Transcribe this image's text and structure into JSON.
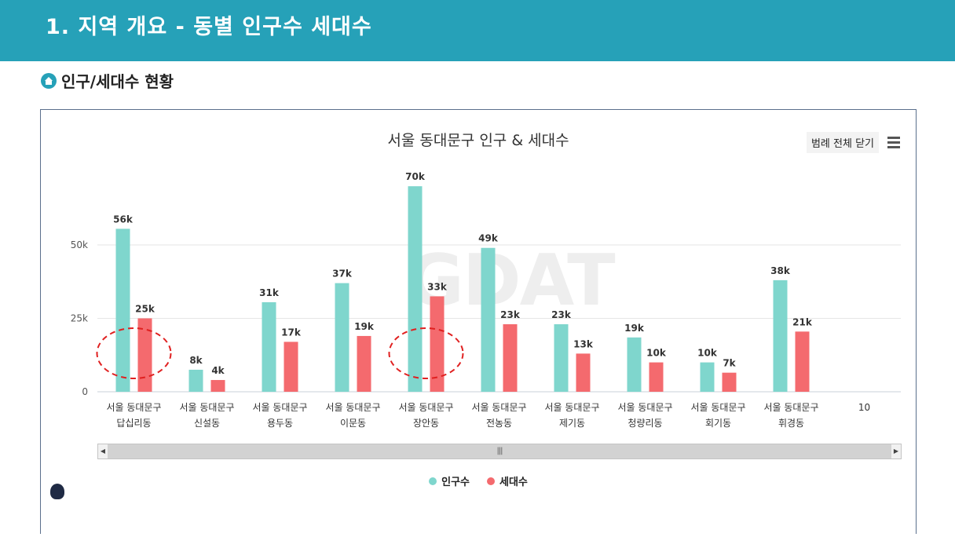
{
  "header": {
    "title": "1. 지역 개요 - 동별 인구수 세대수"
  },
  "section": {
    "title": "인구/세대수 현황"
  },
  "toolbar": {
    "legend_close_label": "범례 전체 닫기"
  },
  "colors": {
    "header": "#26a1b8",
    "population": "#7fd6cd",
    "households": "#f46a6e"
  },
  "chart_data": {
    "type": "bar",
    "title": "서울 동대문구 인구 & 세대수",
    "categories": [
      [
        "서울 동대문구",
        "답십리동"
      ],
      [
        "서울 동대문구",
        "신설동"
      ],
      [
        "서울 동대문구",
        "용두동"
      ],
      [
        "서울 동대문구",
        "이문동"
      ],
      [
        "서울 동대문구",
        "장안동"
      ],
      [
        "서울 동대문구",
        "전농동"
      ],
      [
        "서울 동대문구",
        "제기동"
      ],
      [
        "서울 동대문구",
        "청량리동"
      ],
      [
        "서울 동대문구",
        "회기동"
      ],
      [
        "서울 동대문구",
        "휘경동"
      ],
      [
        "10"
      ]
    ],
    "series": [
      {
        "name": "인구수",
        "color": "#7fd6cd",
        "values": [
          55500,
          7500,
          30500,
          37000,
          70000,
          49000,
          23000,
          18500,
          10000,
          38000,
          null
        ],
        "labels": [
          "56k",
          "8k",
          "31k",
          "37k",
          "70k",
          "49k",
          "23k",
          "19k",
          "10k",
          "38k",
          ""
        ]
      },
      {
        "name": "세대수",
        "color": "#f46a6e",
        "values": [
          25000,
          4000,
          17000,
          19000,
          32500,
          23000,
          13000,
          10000,
          6500,
          20500,
          null
        ],
        "labels": [
          "25k",
          "4k",
          "17k",
          "19k",
          "33k",
          "23k",
          "13k",
          "10k",
          "7k",
          "21k",
          ""
        ]
      }
    ],
    "yticks": [
      0,
      25000,
      50000
    ],
    "ytick_labels": [
      "0",
      "25k",
      "50k"
    ],
    "ylim": [
      0,
      75000
    ],
    "grid": true,
    "legend": "bottom-center",
    "annotations": [
      "red dashed ellipse on 답십리동",
      "red dashed ellipse on 장안동"
    ]
  }
}
